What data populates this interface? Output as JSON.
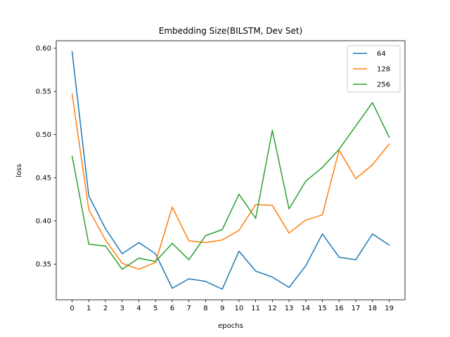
{
  "chart_data": {
    "type": "line",
    "title": "Embedding Size(BILSTM, Dev Set)",
    "xlabel": "epochs",
    "ylabel": "loss",
    "x": [
      0,
      1,
      2,
      3,
      4,
      5,
      6,
      7,
      8,
      9,
      10,
      11,
      12,
      13,
      14,
      15,
      16,
      17,
      18,
      19
    ],
    "xticks": [
      "0",
      "1",
      "2",
      "3",
      "4",
      "5",
      "6",
      "7",
      "8",
      "9",
      "10",
      "11",
      "12",
      "13",
      "14",
      "15",
      "16",
      "17",
      "18",
      "19"
    ],
    "yticks": [
      "0.35",
      "0.40",
      "0.45",
      "0.50",
      "0.55",
      "0.60"
    ],
    "ytick_values": [
      0.35,
      0.4,
      0.45,
      0.5,
      0.55,
      0.6
    ],
    "xlim": [
      -0.95,
      19.95
    ],
    "ylim": [
      0.3087,
      0.6087
    ],
    "grid": false,
    "legend_position": "top-right",
    "series": [
      {
        "name": "64",
        "color": "#1f77b4",
        "values": [
          0.596,
          0.429,
          0.391,
          0.362,
          0.375,
          0.362,
          0.322,
          0.333,
          0.33,
          0.321,
          0.365,
          0.342,
          0.335,
          0.323,
          0.348,
          0.385,
          0.358,
          0.355,
          0.385,
          0.372
        ]
      },
      {
        "name": "128",
        "color": "#ff7f0e",
        "values": [
          0.547,
          0.413,
          0.378,
          0.351,
          0.344,
          0.352,
          0.416,
          0.377,
          0.375,
          0.378,
          0.389,
          0.419,
          0.418,
          0.386,
          0.401,
          0.407,
          0.482,
          0.449,
          0.465,
          0.489
        ]
      },
      {
        "name": "256",
        "color": "#2ca02c",
        "values": [
          0.475,
          0.373,
          0.371,
          0.344,
          0.357,
          0.353,
          0.374,
          0.355,
          0.383,
          0.39,
          0.431,
          0.403,
          0.505,
          0.414,
          0.446,
          0.462,
          0.483,
          0.51,
          0.537,
          0.497
        ]
      }
    ]
  }
}
